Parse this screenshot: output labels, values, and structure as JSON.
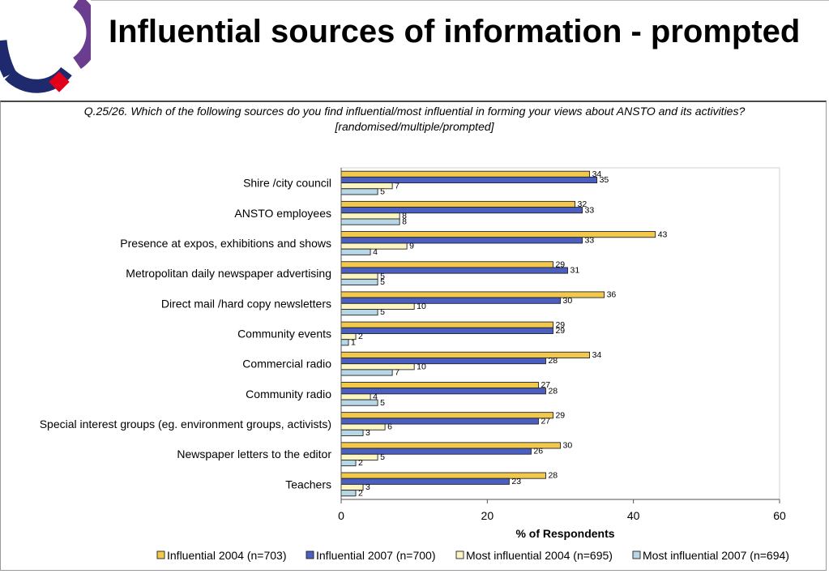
{
  "title": "Influential sources of information - prompted",
  "subtitle_line1": "Q.25/26. Which of the following sources do you find influential/most influential in forming your views about ANSTO and its activities?",
  "subtitle_line2": "[randomised/multiple/prompted]",
  "colors": {
    "influential_2004": "#f2c94c",
    "influential_2007": "#4a5fc1",
    "most_influential_2004": "#fbf6c2",
    "most_influential_2007": "#b7d6e6",
    "logo_blue": "#1f2a6e",
    "logo_red": "#e3001b",
    "logo_purple": "#6b3d8f"
  },
  "chart_data": {
    "type": "bar",
    "orientation": "horizontal",
    "categories": [
      "Shire /city council",
      "ANSTO employees",
      "Presence at expos, exhibitions and shows",
      "Metropolitan daily newspaper advertising",
      "Direct mail /hard copy newsletters",
      "Community events",
      "Commercial radio",
      "Community radio",
      "Special interest groups (eg. environment groups, activists)",
      "Newspaper letters to the editor",
      "Teachers"
    ],
    "series": [
      {
        "name": "Influential 2004 (n=703)",
        "values": [
          34,
          32,
          43,
          29,
          36,
          29,
          34,
          27,
          29,
          30,
          28
        ]
      },
      {
        "name": "Influential 2007 (n=700)",
        "values": [
          35,
          33,
          33,
          31,
          30,
          29,
          28,
          28,
          27,
          26,
          23
        ]
      },
      {
        "name": "Most influential 2004 (n=695)",
        "values": [
          7,
          8,
          9,
          5,
          10,
          2,
          10,
          4,
          6,
          5,
          3
        ]
      },
      {
        "name": "Most influential 2007 (n=694)",
        "values": [
          5,
          8,
          4,
          5,
          5,
          1,
          7,
          5,
          3,
          2,
          2
        ]
      }
    ],
    "xlabel": "% of Respondents",
    "ylabel": "",
    "xlim": [
      0,
      60
    ],
    "xticks": [
      0,
      20,
      40,
      60
    ],
    "grid": false,
    "legend_position": "bottom",
    "data_labels": true
  }
}
